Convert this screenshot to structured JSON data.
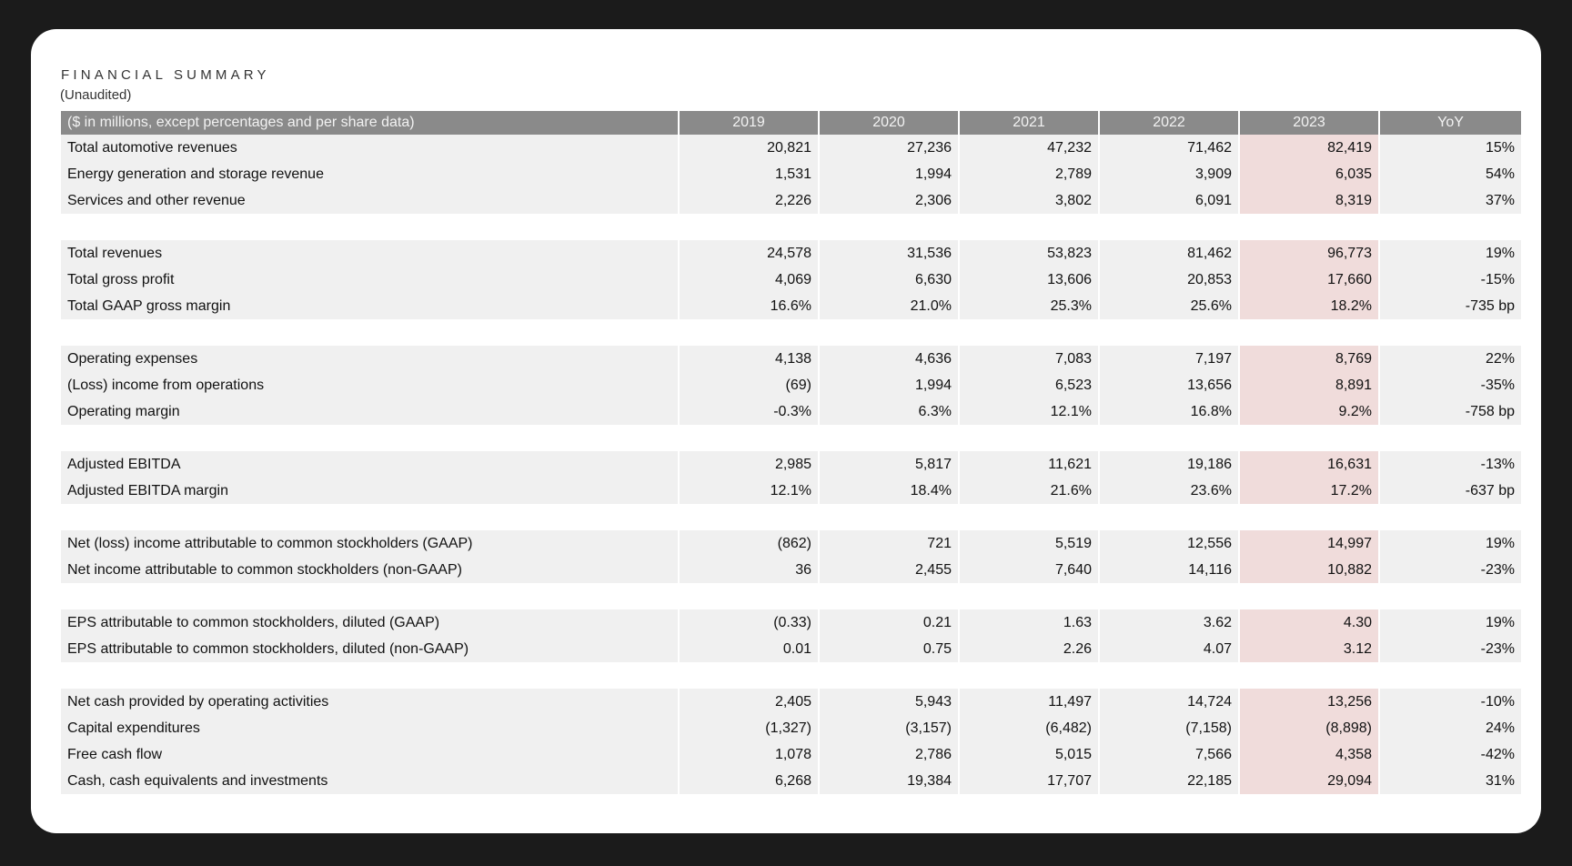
{
  "document": {
    "title": "FINANCIAL SUMMARY",
    "subtitle": "(Unaudited)"
  },
  "table": {
    "header": {
      "label": "($ in millions, except percentages and per share data)",
      "columns": [
        "2019",
        "2020",
        "2021",
        "2022",
        "2023",
        "YoY"
      ]
    },
    "highlight_color": "#f0dcdb",
    "header_color": "#8a8a8a",
    "groups": [
      {
        "rows": [
          {
            "label": "Total automotive revenues",
            "values": [
              "20,821",
              "27,236",
              "47,232",
              "71,462",
              "82,419",
              "15%"
            ]
          },
          {
            "label": "Energy generation and storage revenue",
            "values": [
              "1,531",
              "1,994",
              "2,789",
              "3,909",
              "6,035",
              "54%"
            ]
          },
          {
            "label": "Services and other revenue",
            "values": [
              "2,226",
              "2,306",
              "3,802",
              "6,091",
              "8,319",
              "37%"
            ]
          }
        ]
      },
      {
        "rows": [
          {
            "label": "Total revenues",
            "values": [
              "24,578",
              "31,536",
              "53,823",
              "81,462",
              "96,773",
              "19%"
            ]
          },
          {
            "label": "Total gross profit",
            "values": [
              "4,069",
              "6,630",
              "13,606",
              "20,853",
              "17,660",
              "-15%"
            ]
          },
          {
            "label": "Total GAAP gross margin",
            "values": [
              "16.6%",
              "21.0%",
              "25.3%",
              "25.6%",
              "18.2%",
              "-735 bp"
            ]
          }
        ]
      },
      {
        "rows": [
          {
            "label": "Operating expenses",
            "values": [
              "4,138",
              "4,636",
              "7,083",
              "7,197",
              "8,769",
              "22%"
            ]
          },
          {
            "label": "(Loss) income from operations",
            "values": [
              "(69)",
              "1,994",
              "6,523",
              "13,656",
              "8,891",
              "-35%"
            ]
          },
          {
            "label": "Operating margin",
            "values": [
              "-0.3%",
              "6.3%",
              "12.1%",
              "16.8%",
              "9.2%",
              "-758 bp"
            ]
          }
        ]
      },
      {
        "rows": [
          {
            "label": "Adjusted EBITDA",
            "values": [
              "2,985",
              "5,817",
              "11,621",
              "19,186",
              "16,631",
              "-13%"
            ]
          },
          {
            "label": "Adjusted EBITDA margin",
            "values": [
              "12.1%",
              "18.4%",
              "21.6%",
              "23.6%",
              "17.2%",
              "-637 bp"
            ]
          }
        ]
      },
      {
        "rows": [
          {
            "label": "Net (loss) income attributable to common stockholders (GAAP)",
            "values": [
              "(862)",
              "721",
              "5,519",
              "12,556",
              "14,997",
              "19%"
            ]
          },
          {
            "label": "Net income attributable to common stockholders (non-GAAP)",
            "values": [
              "36",
              "2,455",
              "7,640",
              "14,116",
              "10,882",
              "-23%"
            ]
          }
        ]
      },
      {
        "rows": [
          {
            "label": "EPS attributable to common stockholders, diluted (GAAP)",
            "values": [
              "(0.33)",
              "0.21",
              "1.63",
              "3.62",
              "4.30",
              "19%"
            ]
          },
          {
            "label": "EPS attributable to common stockholders, diluted (non-GAAP)",
            "values": [
              "0.01",
              "0.75",
              "2.26",
              "4.07",
              "3.12",
              "-23%"
            ]
          }
        ]
      },
      {
        "rows": [
          {
            "label": "Net cash provided by operating activities",
            "values": [
              "2,405",
              "5,943",
              "11,497",
              "14,724",
              "13,256",
              "-10%"
            ]
          },
          {
            "label": "Capital expenditures",
            "values": [
              "(1,327)",
              "(3,157)",
              "(6,482)",
              "(7,158)",
              "(8,898)",
              "24%"
            ]
          },
          {
            "label": "Free cash flow",
            "values": [
              "1,078",
              "2,786",
              "5,015",
              "7,566",
              "4,358",
              "-42%"
            ]
          },
          {
            "label": "Cash, cash equivalents and investments",
            "values": [
              "6,268",
              "19,384",
              "17,707",
              "22,185",
              "29,094",
              "31%"
            ]
          }
        ]
      }
    ]
  }
}
